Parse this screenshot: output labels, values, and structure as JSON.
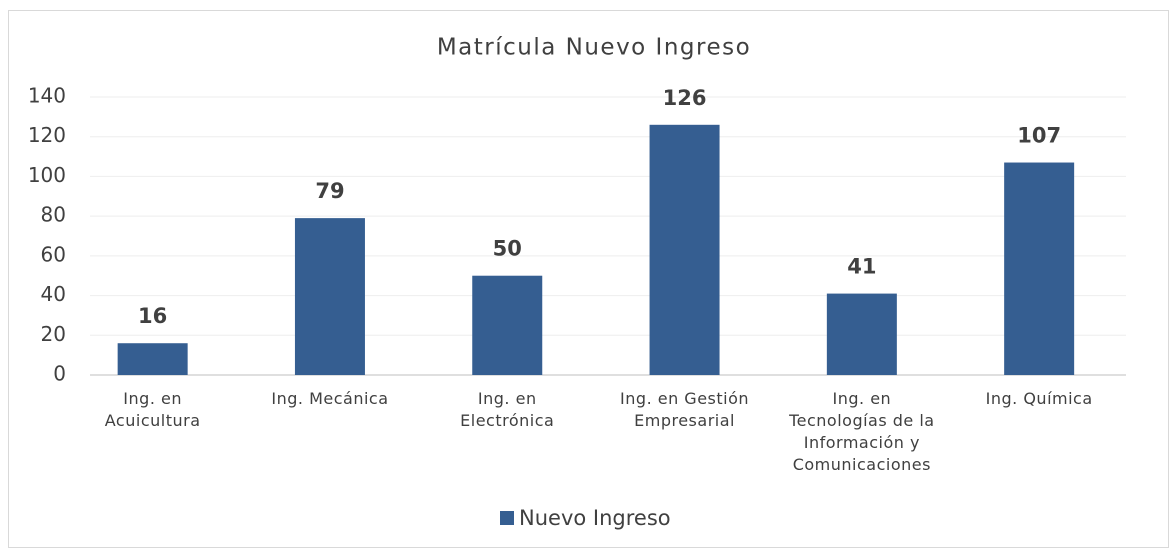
{
  "chart_data": {
    "type": "bar",
    "title": "Matrícula Nuevo Ingreso",
    "categories": [
      "Ing. en Acuicultura",
      "Ing. Mecánica",
      "Ing. en Electrónica",
      "Ing. en Gestión Empresarial",
      "Ing. en Tecnologías de la Información y Comunicaciones",
      "Ing. Química"
    ],
    "series": [
      {
        "name": "Nuevo Ingreso",
        "color": "#355e91",
        "values": [
          16,
          79,
          50,
          126,
          41,
          107
        ]
      }
    ],
    "ylim": [
      0,
      140
    ],
    "yticks": [
      0,
      20,
      40,
      60,
      80,
      100,
      120,
      140
    ],
    "grid": true,
    "legend": "bottom"
  }
}
